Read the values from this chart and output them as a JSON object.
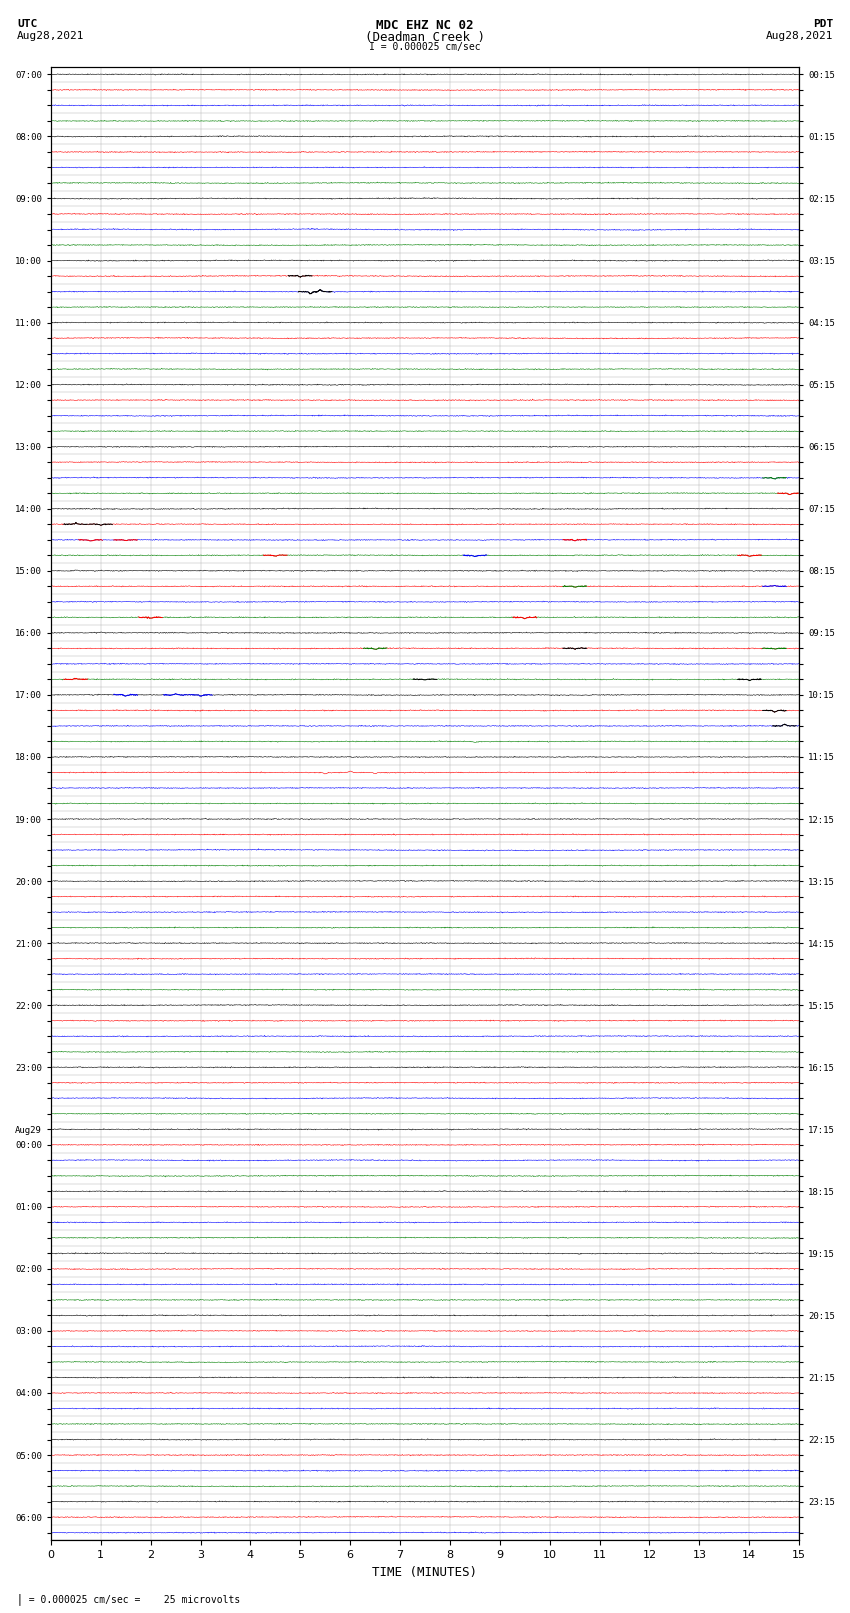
{
  "title_line1": "MDC EHZ NC 02",
  "title_line2": "(Deadman Creek )",
  "title_line3": "I = 0.000025 cm/sec",
  "left_header_line1": "UTC",
  "left_header_line2": "Aug28,2021",
  "right_header_line1": "PDT",
  "right_header_line2": "Aug28,2021",
  "xlabel": "TIME (MINUTES)",
  "footer": "= 0.000025 cm/sec =    25 microvolts",
  "bg_color": "#ffffff",
  "trace_colors": [
    "black",
    "red",
    "blue",
    "green"
  ],
  "grid_color": "#aaaaaa",
  "x_min": 0,
  "x_max": 15,
  "noise_seed": 42,
  "left_times": [
    "07:00",
    "",
    "",
    "",
    "08:00",
    "",
    "",
    "",
    "09:00",
    "",
    "",
    "",
    "10:00",
    "",
    "",
    "",
    "11:00",
    "",
    "",
    "",
    "12:00",
    "",
    "",
    "",
    "13:00",
    "",
    "",
    "",
    "14:00",
    "",
    "",
    "",
    "15:00",
    "",
    "",
    "",
    "16:00",
    "",
    "",
    "",
    "17:00",
    "",
    "",
    "",
    "18:00",
    "",
    "",
    "",
    "19:00",
    "",
    "",
    "",
    "20:00",
    "",
    "",
    "",
    "21:00",
    "",
    "",
    "",
    "22:00",
    "",
    "",
    "",
    "23:00",
    "",
    "",
    "",
    "Aug29",
    "00:00",
    "",
    "",
    "",
    "01:00",
    "",
    "",
    "",
    "02:00",
    "",
    "",
    "",
    "03:00",
    "",
    "",
    "",
    "04:00",
    "",
    "",
    "",
    "05:00",
    "",
    "",
    "",
    "06:00",
    ""
  ],
  "right_times": [
    "00:15",
    "",
    "",
    "",
    "01:15",
    "",
    "",
    "",
    "02:15",
    "",
    "",
    "",
    "03:15",
    "",
    "",
    "",
    "04:15",
    "",
    "",
    "",
    "05:15",
    "",
    "",
    "",
    "06:15",
    "",
    "",
    "",
    "07:15",
    "",
    "",
    "",
    "08:15",
    "",
    "",
    "",
    "09:15",
    "",
    "",
    "",
    "10:15",
    "",
    "",
    "",
    "11:15",
    "",
    "",
    "",
    "12:15",
    "",
    "",
    "",
    "13:15",
    "",
    "",
    "",
    "14:15",
    "",
    "",
    "",
    "15:15",
    "",
    "",
    "",
    "16:15",
    "",
    "",
    "",
    "17:15",
    "",
    "",
    "",
    "18:15",
    "",
    "",
    "",
    "19:15",
    "",
    "",
    "",
    "20:15",
    "",
    "",
    "",
    "21:15",
    "",
    "",
    "",
    "22:15",
    "",
    "",
    "",
    "23:15",
    ""
  ],
  "spike_rows": [
    {
      "row": 13,
      "time": 5.0,
      "color": "black",
      "amplitude": 8
    },
    {
      "row": 14,
      "time": 5.2,
      "color": "black",
      "amplitude": 12
    },
    {
      "row": 14,
      "time": 5.4,
      "color": "black",
      "amplitude": -10
    },
    {
      "row": 26,
      "time": 14.5,
      "color": "green",
      "amplitude": 6
    },
    {
      "row": 27,
      "time": 14.8,
      "color": "red",
      "amplitude": 8
    },
    {
      "row": 29,
      "time": 0.5,
      "color": "black",
      "amplitude": -5
    },
    {
      "row": 29,
      "time": 1.0,
      "color": "black",
      "amplitude": 6
    },
    {
      "row": 30,
      "time": 0.8,
      "color": "red",
      "amplitude": 6
    },
    {
      "row": 30,
      "time": 1.5,
      "color": "red",
      "amplitude": 5
    },
    {
      "row": 30,
      "time": 10.5,
      "color": "red",
      "amplitude": 5
    },
    {
      "row": 31,
      "time": 4.5,
      "color": "red",
      "amplitude": 7
    },
    {
      "row": 31,
      "time": 8.5,
      "color": "blue",
      "amplitude": 6
    },
    {
      "row": 31,
      "time": 14.0,
      "color": "red",
      "amplitude": 6
    },
    {
      "row": 32,
      "time": 0.5,
      "color": "black",
      "amplitude": -5
    },
    {
      "row": 33,
      "time": 10.5,
      "color": "green",
      "amplitude": 5
    },
    {
      "row": 33,
      "time": 14.5,
      "color": "blue",
      "amplitude": -5
    },
    {
      "row": 35,
      "time": 2.0,
      "color": "red",
      "amplitude": 6
    },
    {
      "row": 35,
      "time": 9.5,
      "color": "red",
      "amplitude": 6
    },
    {
      "row": 36,
      "time": 1.0,
      "color": "black",
      "amplitude": -4
    },
    {
      "row": 37,
      "time": 6.5,
      "color": "green",
      "amplitude": 5
    },
    {
      "row": 37,
      "time": 10.5,
      "color": "black",
      "amplitude": 5
    },
    {
      "row": 37,
      "time": 14.5,
      "color": "green",
      "amplitude": 4
    },
    {
      "row": 39,
      "time": 0.5,
      "color": "red",
      "amplitude": -5
    },
    {
      "row": 39,
      "time": 7.5,
      "color": "black",
      "amplitude": 4
    },
    {
      "row": 39,
      "time": 14.0,
      "color": "black",
      "amplitude": 5
    },
    {
      "row": 40,
      "time": 1.5,
      "color": "blue",
      "amplitude": 7
    },
    {
      "row": 40,
      "time": 2.5,
      "color": "blue",
      "amplitude": -8
    },
    {
      "row": 40,
      "time": 3.0,
      "color": "blue",
      "amplitude": 6
    },
    {
      "row": 41,
      "time": 14.5,
      "color": "black",
      "amplitude": 8
    },
    {
      "row": 42,
      "time": 14.7,
      "color": "black",
      "amplitude": -10
    },
    {
      "row": 43,
      "time": 8.5,
      "color": "green",
      "amplitude": 5
    },
    {
      "row": 45,
      "time": 5.5,
      "color": "red",
      "amplitude": 7
    },
    {
      "row": 45,
      "time": 6.0,
      "color": "red",
      "amplitude": -7
    },
    {
      "row": 45,
      "time": 6.5,
      "color": "red",
      "amplitude": 6
    }
  ]
}
